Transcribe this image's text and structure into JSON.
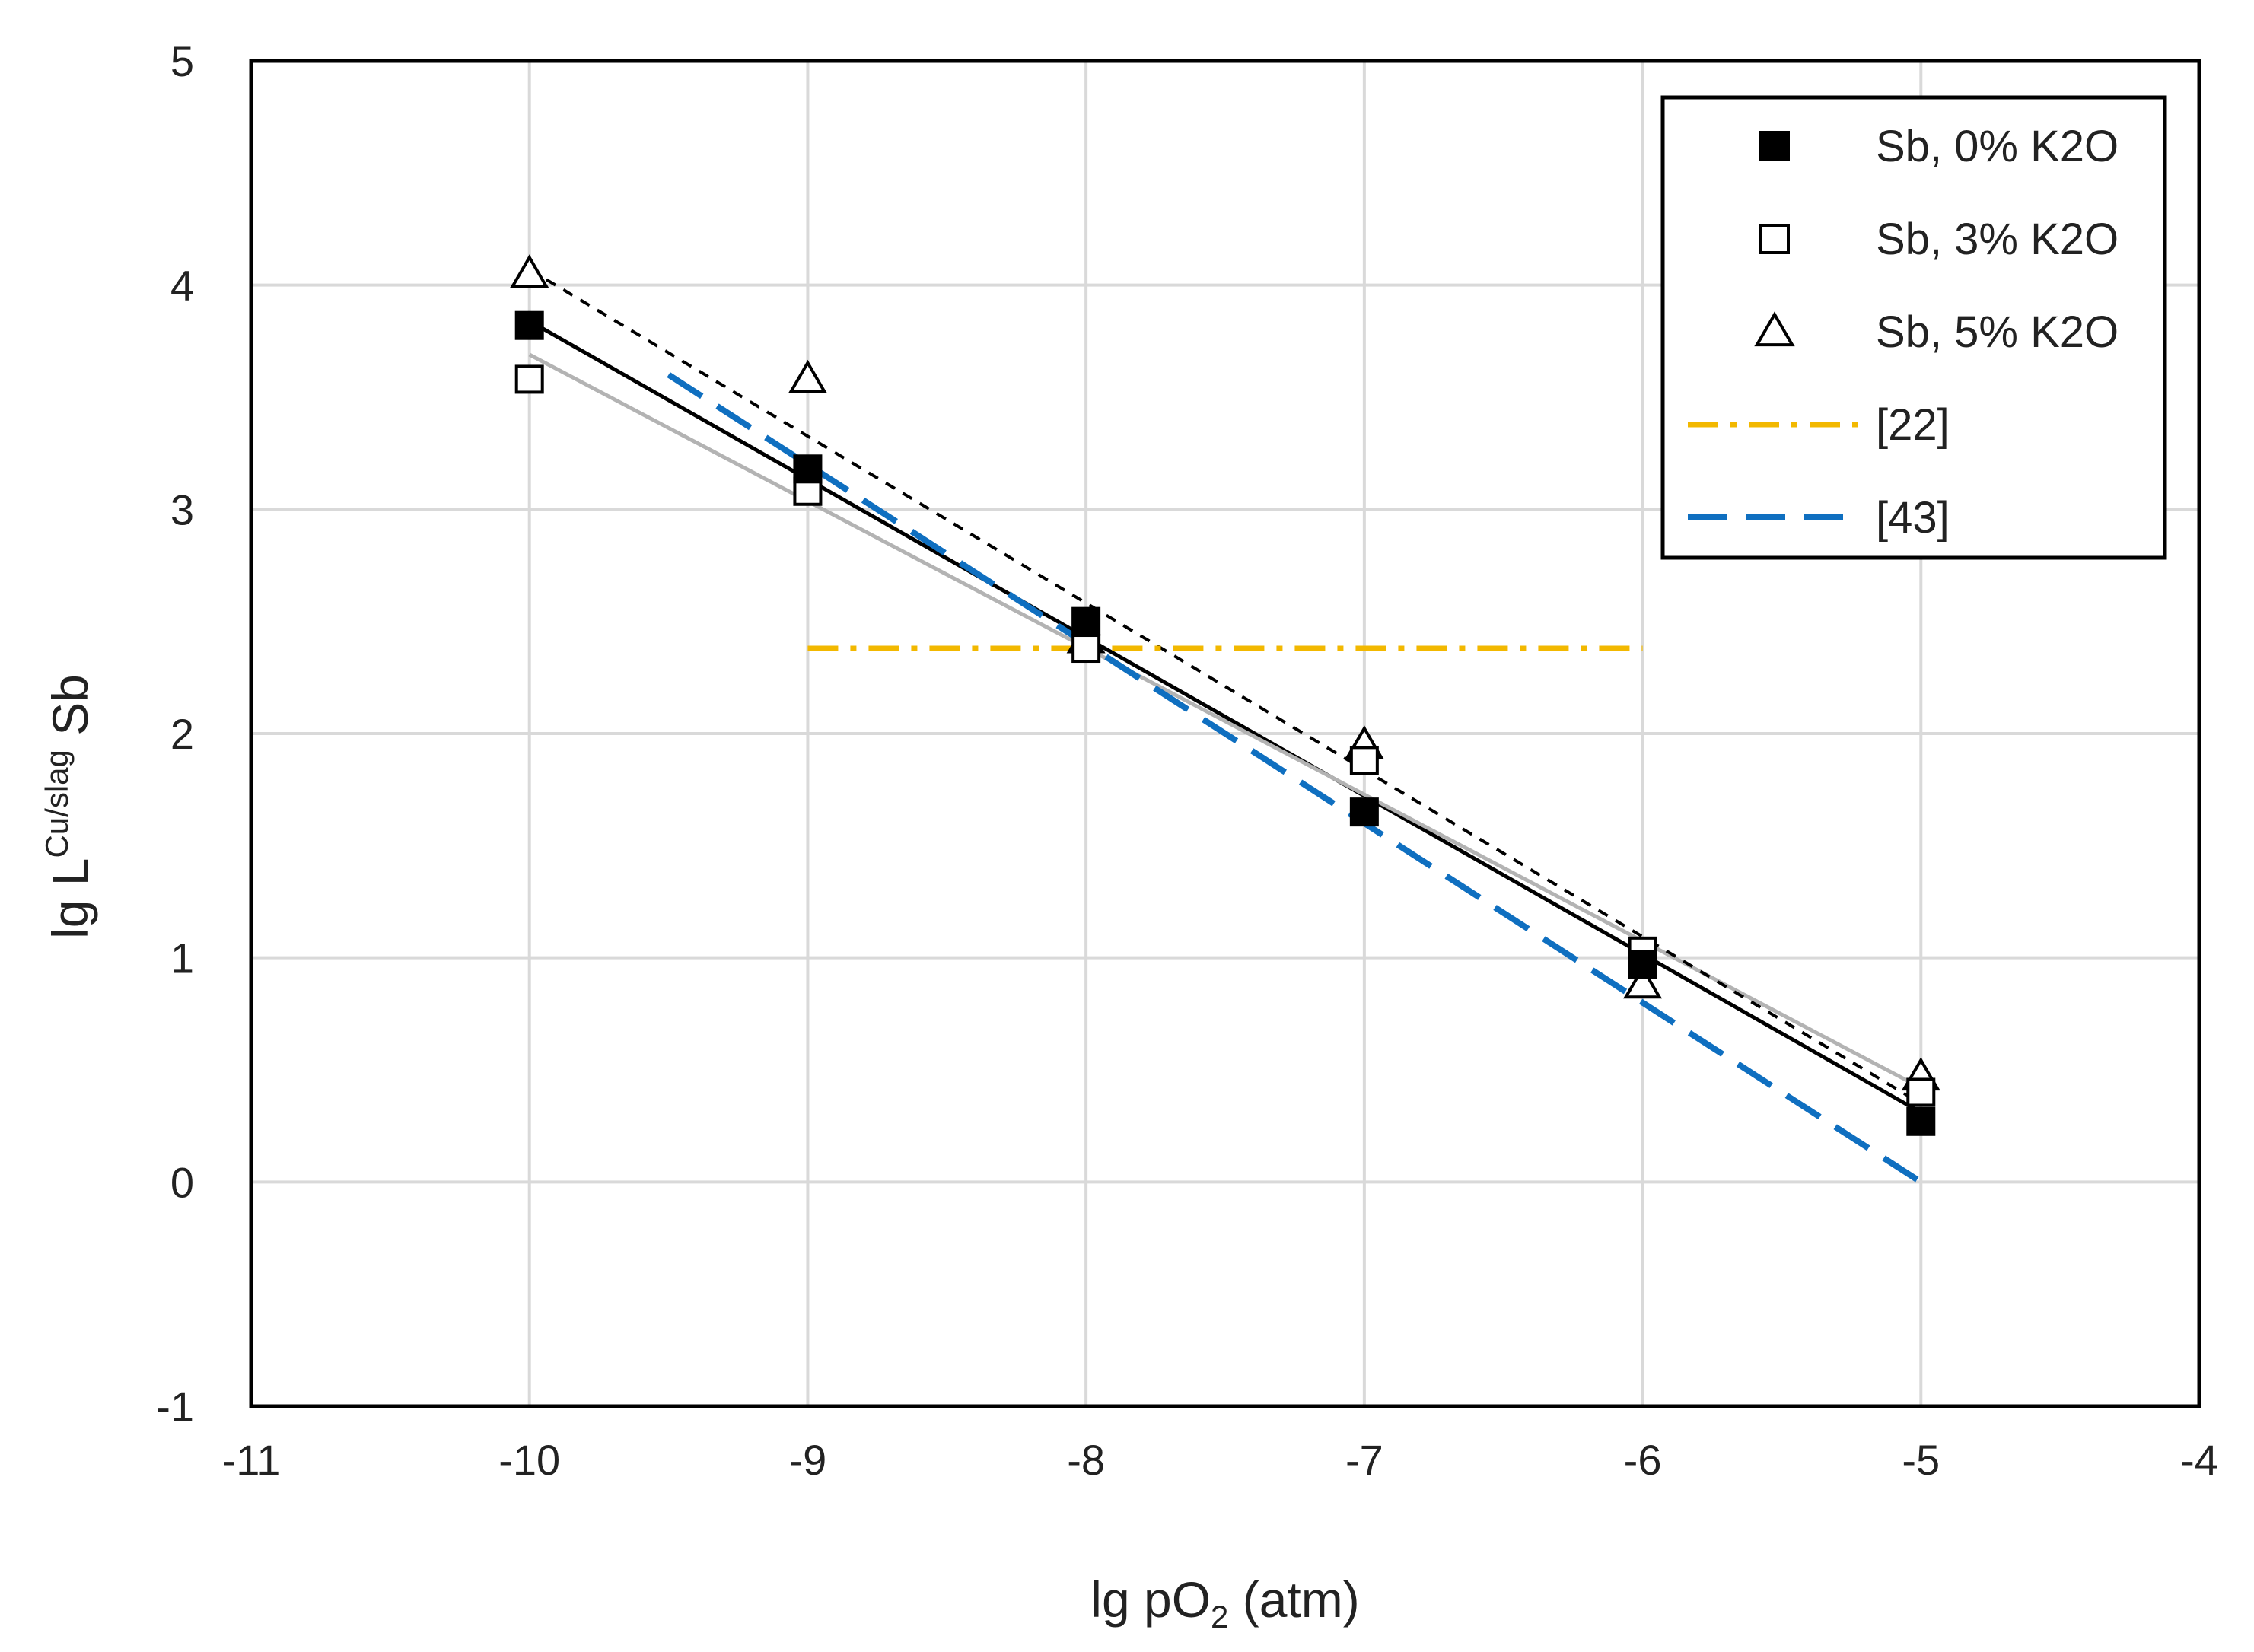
{
  "chart_data": {
    "type": "scatter",
    "xlabel": {
      "prefix": "lg pO",
      "sub": "2",
      "suffix": " (atm)"
    },
    "ylabel": {
      "prefix": "lg L",
      "sup": "Cu/slag",
      "suffix": " Sb"
    },
    "xlim": [
      -11,
      -4
    ],
    "ylim": [
      -1,
      5
    ],
    "xticks": [
      -11,
      -10,
      -9,
      -8,
      -7,
      -6,
      -5,
      -4
    ],
    "yticks": [
      -1,
      0,
      1,
      2,
      3,
      4,
      5
    ],
    "xtick_labels": [
      "-11",
      "-10",
      "-9",
      "-8",
      "-7",
      "-6",
      "-5",
      "-4"
    ],
    "ytick_labels": [
      "-1",
      "0",
      "1",
      "2",
      "3",
      "4",
      "5"
    ],
    "grid": true,
    "legend_position": "top-right",
    "series": [
      {
        "name": "Sb, 0% K2O",
        "marker": "filled-square",
        "color": "#000000",
        "x": [
          -10,
          -9,
          -8,
          -7,
          -6,
          -5
        ],
        "y": [
          3.82,
          3.18,
          2.5,
          1.65,
          0.97,
          0.27
        ]
      },
      {
        "name": "Sb, 3% K2O",
        "marker": "open-square",
        "color": "#000000",
        "x": [
          -10,
          -9,
          -8,
          -7,
          -6,
          -5
        ],
        "y": [
          3.58,
          3.08,
          2.38,
          1.88,
          1.03,
          0.4
        ]
      },
      {
        "name": "Sb, 5% K2O",
        "marker": "open-triangle",
        "color": "#000000",
        "x": [
          -10,
          -9,
          -8,
          -7,
          -6,
          -5
        ],
        "y": [
          4.05,
          3.58,
          2.42,
          1.95,
          0.88,
          0.47
        ]
      }
    ],
    "fit_lines": [
      {
        "name": "fit 0% K2O",
        "style": "solid",
        "color": "#000000",
        "x": [
          -10,
          -5
        ],
        "y": [
          3.84,
          0.31
        ]
      },
      {
        "name": "fit 3% K2O",
        "style": "solid",
        "color": "#b3b3b3",
        "x": [
          -10,
          -5
        ],
        "y": [
          3.69,
          0.42
        ]
      },
      {
        "name": "fit 5% K2O",
        "style": "short-dash",
        "color": "#000000",
        "x": [
          -10,
          -5
        ],
        "y": [
          4.07,
          0.35
        ]
      }
    ],
    "reference_lines": [
      {
        "name": "[22]",
        "style": "dash-dot",
        "color": "#f2b800",
        "x": [
          -9,
          -6
        ],
        "y": [
          2.38,
          2.38
        ]
      },
      {
        "name": "[43]",
        "style": "long-dash",
        "color": "#0f6fc0",
        "x": [
          -9.5,
          -5
        ],
        "y": [
          3.6,
          0.0
        ]
      }
    ]
  }
}
